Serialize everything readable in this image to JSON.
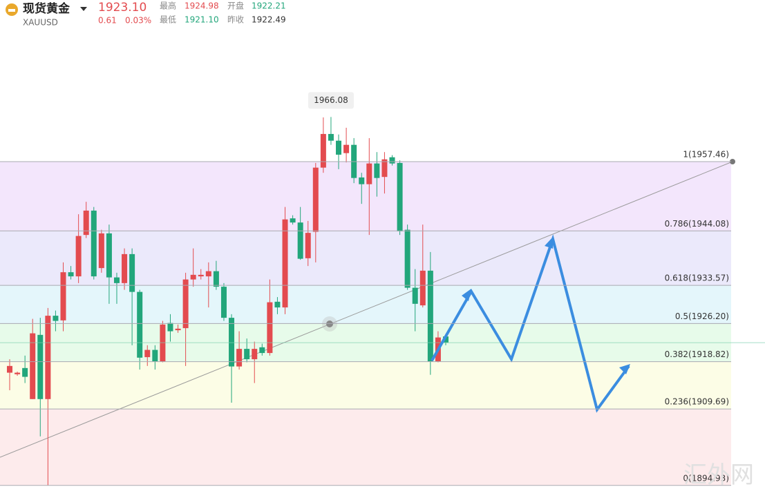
{
  "header": {
    "name": "现货黄金",
    "code": "XAUUSD",
    "price": "1923.10",
    "change": "0.61",
    "change_pct": "0.03%",
    "stats": [
      {
        "label": "最高",
        "value": "1924.98"
      },
      {
        "label": "开盘",
        "value": "1922.21"
      },
      {
        "label": "最低",
        "value": "1921.10"
      },
      {
        "label": "昨收",
        "value": "1922.49"
      }
    ]
  },
  "watermark": "汇外网",
  "chart_data": {
    "type": "candlestick",
    "ylim": [
      1892.5,
      1982.0
    ],
    "up_color": "#e34b4f",
    "down_color": "#22a67b",
    "open": [
      1916.7,
      1916.4,
      1917.6,
      1911.6,
      1924.0,
      1911.6,
      1927.7,
      1926.8,
      1936.1,
      1935.3,
      1943.3,
      1948.0,
      1936.9,
      1943.6,
      1935.1,
      1934.0,
      1939.6,
      1932.3,
      1919.7,
      1921.1,
      1918.9,
      1926.3,
      1924.9,
      1925.3,
      1934.7,
      1935.3,
      1935.3,
      1936.3,
      1933.3,
      1927.3,
      1917.9,
      1921.3,
      1919.3,
      1921.6,
      1920.5,
      1930.4,
      1929.3,
      1946.5,
      1945.7,
      1938.8,
      1943.9,
      1956.3,
      1962.8,
      1961.5,
      1959.1,
      1960.7,
      1954.4,
      1953.1,
      1957.1,
      1954.5,
      1958.3,
      1957.2,
      1944.3,
      1933.1,
      1929.7,
      1936.4,
      1918.9,
      1923.7
    ],
    "high": [
      1919.3,
      1916.9,
      1920.0,
      1927.1,
      1927.3,
      1929.2,
      1928.7,
      1938.0,
      1937.3,
      1947.3,
      1949.7,
      1948.7,
      1944.3,
      1945.3,
      1936.0,
      1940.7,
      1940.7,
      1932.7,
      1922.0,
      1922.0,
      1926.7,
      1928.0,
      1926.0,
      1936.0,
      1940.7,
      1936.7,
      1938.0,
      1938.3,
      1934.0,
      1928.0,
      1924.7,
      1923.3,
      1922.7,
      1922.3,
      1934.7,
      1931.3,
      1948.7,
      1947.1,
      1948.7,
      1946.0,
      1957.2,
      1966.0,
      1966.08,
      1962.7,
      1964.0,
      1962.0,
      1955.3,
      1962.0,
      1959.3,
      1959.3,
      1958.7,
      1957.7,
      1945.3,
      1936.7,
      1945.3,
      1940.0,
      1924.7,
      1924.2
    ],
    "low": [
      1913.3,
      1916.1,
      1914.7,
      1911.6,
      1904.4,
      1894.93,
      1924.7,
      1924.7,
      1934.7,
      1934.0,
      1942.7,
      1934.7,
      1936.0,
      1930.0,
      1930.0,
      1932.7,
      1922.0,
      1917.3,
      1918.0,
      1917.3,
      1918.7,
      1922.7,
      1924.4,
      1918.0,
      1933.3,
      1934.7,
      1929.3,
      1932.7,
      1926.7,
      1910.9,
      1917.3,
      1918.7,
      1914.7,
      1920.0,
      1920.0,
      1928.0,
      1928.0,
      1945.3,
      1938.5,
      1937.3,
      1938.0,
      1955.3,
      1960.7,
      1956.0,
      1957.3,
      1953.3,
      1949.3,
      1943.3,
      1950.7,
      1951.3,
      1956.7,
      1943.3,
      1932.7,
      1924.7,
      1929.3,
      1916.3,
      1918.7,
      1922.0
    ],
    "close": [
      1918.0,
      1916.7,
      1915.9,
      1924.3,
      1911.6,
      1927.7,
      1926.7,
      1936.1,
      1935.3,
      1943.1,
      1948.0,
      1935.3,
      1943.6,
      1935.1,
      1934.0,
      1939.6,
      1932.3,
      1919.6,
      1921.1,
      1918.9,
      1926.0,
      1924.7,
      1925.2,
      1934.7,
      1935.6,
      1935.6,
      1936.3,
      1933.3,
      1927.3,
      1917.9,
      1921.3,
      1919.3,
      1921.3,
      1920.5,
      1930.3,
      1929.3,
      1946.3,
      1945.7,
      1938.7,
      1943.7,
      1956.3,
      1962.8,
      1961.5,
      1958.8,
      1960.7,
      1954.3,
      1953.1,
      1957.1,
      1954.3,
      1957.9,
      1957.1,
      1944.0,
      1933.1,
      1930.0,
      1936.4,
      1918.9,
      1923.5,
      1922.5
    ],
    "max_label": {
      "index": 42,
      "value": 1966.08,
      "label": "1966.08"
    },
    "fib_levels": [
      {
        "value": 1957.46,
        "label": "1(1957.46)",
        "color": "#f3e6fc"
      },
      {
        "value": 1944.08,
        "label": "0.786(1944.08)",
        "color": "#ebe9fb"
      },
      {
        "value": 1933.57,
        "label": "0.618(1933.57)",
        "color": "#e4f6fb"
      },
      {
        "value": 1926.2,
        "label": "0.5(1926.20)",
        "color": "#e7fbea"
      },
      {
        "value": 1918.82,
        "label": "0.382(1918.82)",
        "color": "#fcfde6"
      },
      {
        "value": 1909.69,
        "label": "0.236(1909.69)",
        "color": "#fdebec"
      },
      {
        "value": 1894.93,
        "label": "0(1894.93)"
      }
    ]
  }
}
